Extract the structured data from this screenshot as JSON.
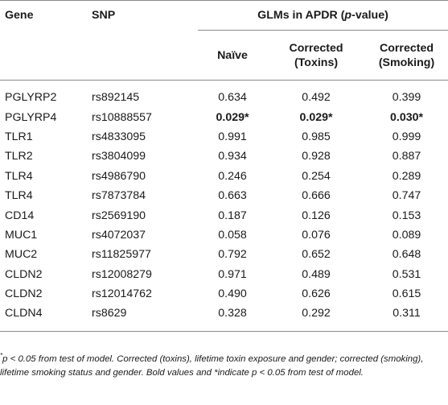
{
  "table": {
    "headers": {
      "gene": "Gene",
      "snp": "SNP",
      "glm_group_prefix": "GLMs in APDR (",
      "glm_group_p": "p",
      "glm_group_suffix": "-value)",
      "naive": "Naïve",
      "toxins_line1": "Corrected",
      "toxins_line2": "(Toxins)",
      "smoking_line1": "Corrected",
      "smoking_line2": "(Smoking)"
    },
    "rows": [
      {
        "gene": "PGLYRP2",
        "snp": "rs892145",
        "naive": "0.634",
        "toxins": "0.492",
        "smoking": "0.399",
        "bold": false
      },
      {
        "gene": "PGLYRP4",
        "snp": "rs10888557",
        "naive": "0.029*",
        "toxins": "0.029*",
        "smoking": "0.030*",
        "bold": true
      },
      {
        "gene": "TLR1",
        "snp": "rs4833095",
        "naive": "0.991",
        "toxins": "0.985",
        "smoking": "0.999",
        "bold": false
      },
      {
        "gene": "TLR2",
        "snp": "rs3804099",
        "naive": "0.934",
        "toxins": "0.928",
        "smoking": "0.887",
        "bold": false
      },
      {
        "gene": "TLR4",
        "snp": "rs4986790",
        "naive": "0.246",
        "toxins": "0.254",
        "smoking": "0.289",
        "bold": false
      },
      {
        "gene": "TLR4",
        "snp": "rs7873784",
        "naive": "0.663",
        "toxins": "0.666",
        "smoking": "0.747",
        "bold": false
      },
      {
        "gene": "CD14",
        "snp": "rs2569190",
        "naive": "0.187",
        "toxins": "0.126",
        "smoking": "0.153",
        "bold": false
      },
      {
        "gene": "MUC1",
        "snp": "rs4072037",
        "naive": "0.058",
        "toxins": "0.076",
        "smoking": "0.089",
        "bold": false
      },
      {
        "gene": "MUC2",
        "snp": "rs11825977",
        "naive": "0.792",
        "toxins": "0.652",
        "smoking": "0.648",
        "bold": false
      },
      {
        "gene": "CLDN2",
        "snp": "rs12008279",
        "naive": "0.971",
        "toxins": "0.489",
        "smoking": "0.531",
        "bold": false
      },
      {
        "gene": "CLDN2",
        "snp": "rs12014762",
        "naive": "0.490",
        "toxins": "0.626",
        "smoking": "0.615",
        "bold": false
      },
      {
        "gene": "CLDN4",
        "snp": "rs8629",
        "naive": "0.328",
        "toxins": "0.292",
        "smoking": "0.311",
        "bold": false
      }
    ]
  },
  "footnote": {
    "star": "*",
    "line": "p < 0.05 from test of model. Corrected (toxins), lifetime toxin exposure and gender; corrected (smoking), lifetime smoking status and gender. Bold values and *indicate p < 0.05 from test of model."
  },
  "colors": {
    "rule": "#8a8a8a",
    "text": "#1a1a1a"
  }
}
